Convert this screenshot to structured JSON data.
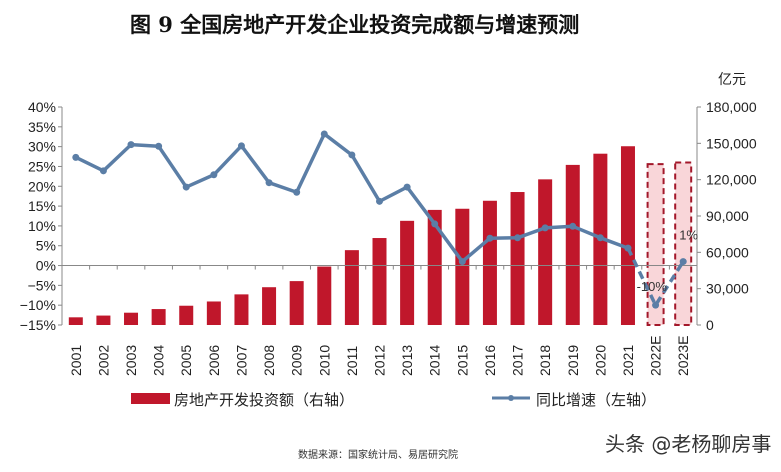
{
  "title": "图 9    全国房地产开发企业投资完成额与增速预测",
  "source": "数据来源：国家统计局、易居研究院",
  "watermark": "头条 @老杨聊房事",
  "chart_data": {
    "type": "bar+line",
    "categories": [
      "2001",
      "2002",
      "2003",
      "2004",
      "2005",
      "2006",
      "2007",
      "2008",
      "2009",
      "2010",
      "2011",
      "2012",
      "2013",
      "2014",
      "2015",
      "2016",
      "2017",
      "2018",
      "2019",
      "2020",
      "2021",
      "2022E",
      "2023E"
    ],
    "right_axis": {
      "unit": "亿元",
      "range": [
        0,
        180000
      ],
      "ticks": [
        "0",
        "30,000",
        "60,000",
        "90,000",
        "120,000",
        "150,000",
        "180,000"
      ]
    },
    "left_axis": {
      "range": [
        -15,
        40
      ],
      "ticks": [
        "-15%",
        "-10%",
        "-5%",
        "0%",
        "5%",
        "10%",
        "15%",
        "20%",
        "25%",
        "30%",
        "35%",
        "40%"
      ]
    },
    "series": [
      {
        "name": "房地产开发投资额（右轴）",
        "type": "bar",
        "axis": "right",
        "color": "#c0172b",
        "forecast_fill": "#f9d6d9",
        "values": [
          6344,
          7791,
          10154,
          13158,
          15909,
          19423,
          25289,
          31203,
          36242,
          48259,
          61797,
          71804,
          86013,
          95036,
          95979,
          102581,
          109799,
          120264,
          132194,
          141443,
          147602,
          132842,
          134170
        ]
      },
      {
        "name": "同比增速（左轴）",
        "type": "line",
        "axis": "left",
        "color": "#5b7ea6",
        "values": [
          27.3,
          23.9,
          30.5,
          30.1,
          19.8,
          22.9,
          30.2,
          20.9,
          18.5,
          33.2,
          27.9,
          16.2,
          19.8,
          10.5,
          1.0,
          6.9,
          7.0,
          9.5,
          9.9,
          7.0,
          4.4,
          -10,
          1
        ]
      }
    ],
    "forecast_categories": [
      "2022E",
      "2023E"
    ],
    "annotations": [
      {
        "category": "2022E",
        "text": "-10%"
      },
      {
        "category": "2023E",
        "text": "1%"
      }
    ],
    "legend": "bottom",
    "grid": false
  }
}
